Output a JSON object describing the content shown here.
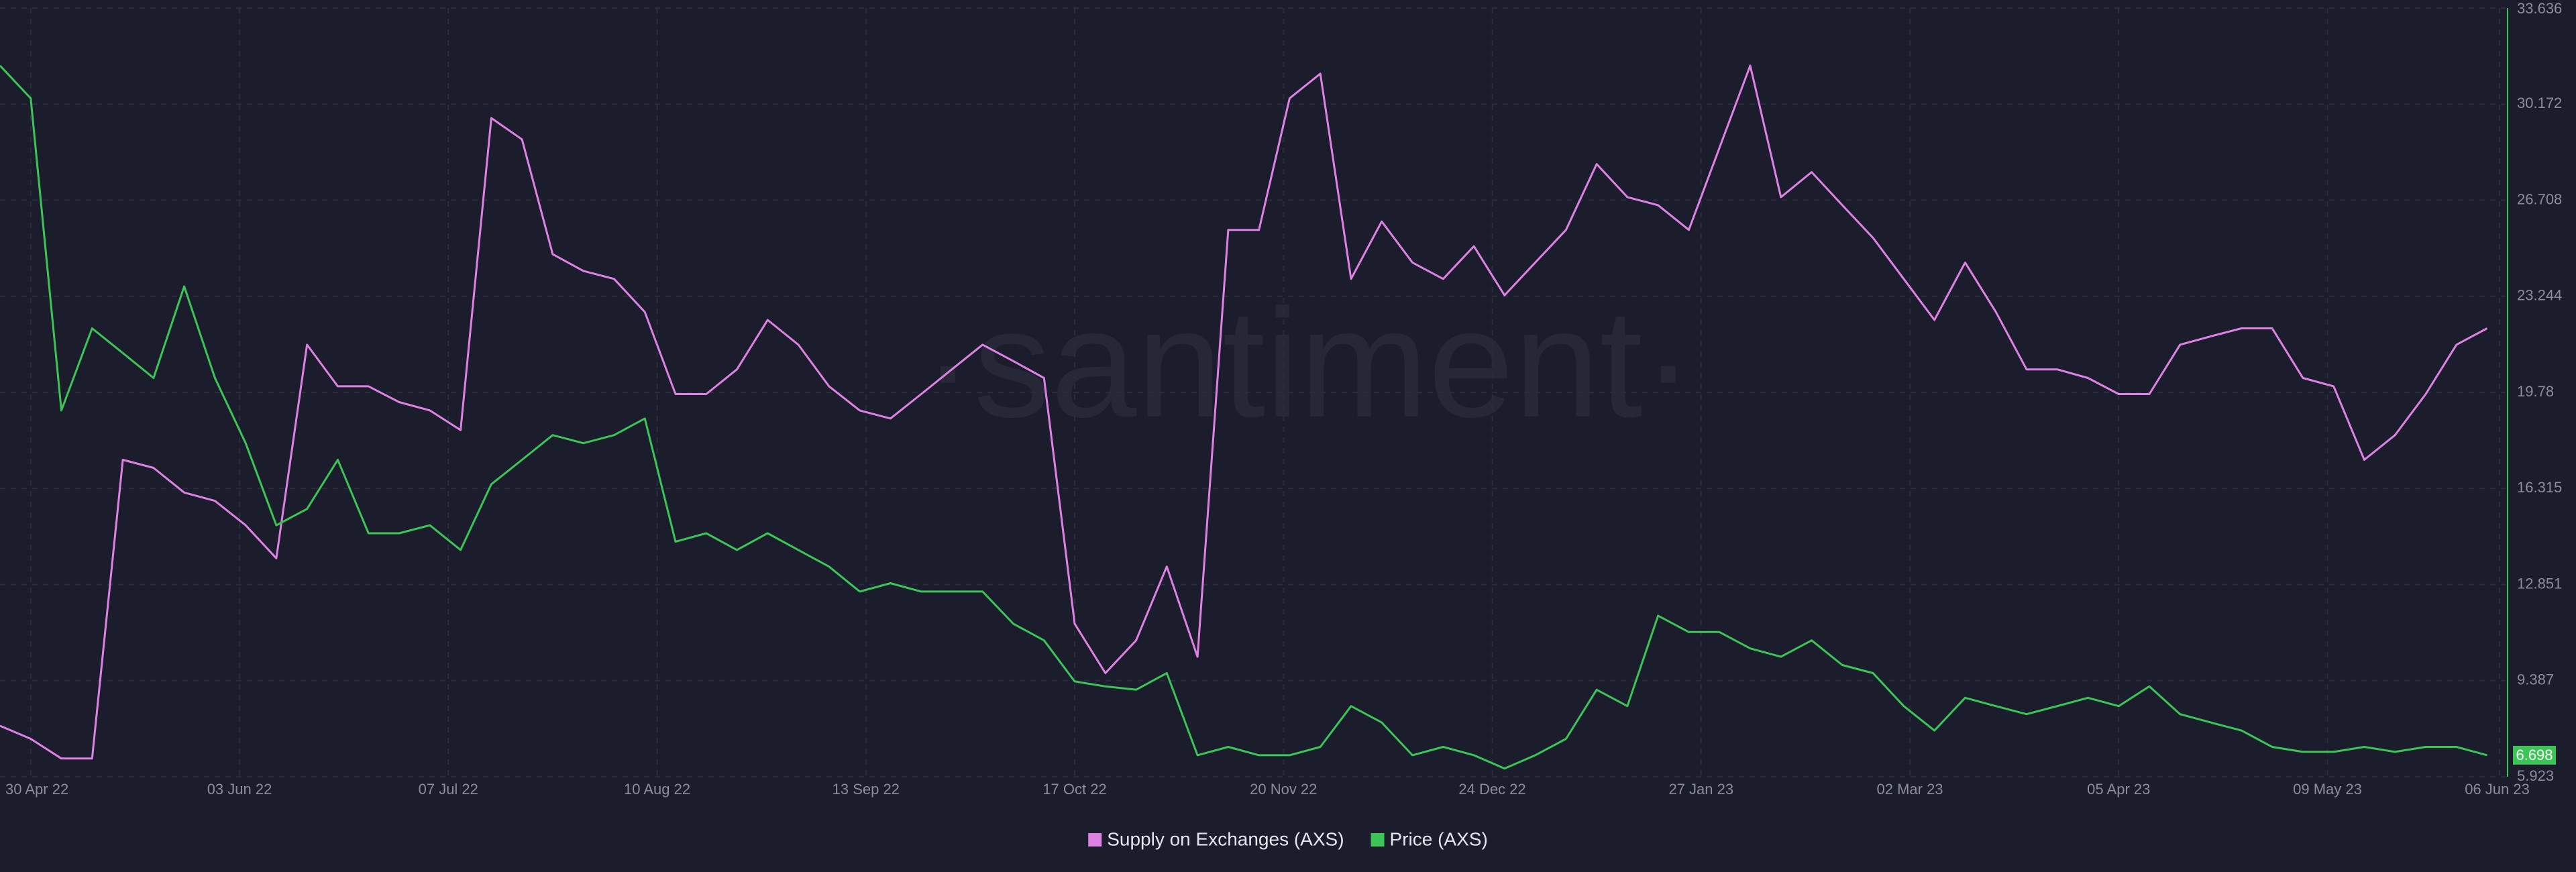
{
  "chart_data": {
    "type": "line",
    "watermark": "·santiment·",
    "x": [
      "2022-04-25",
      "2022-04-30",
      "2022-05-05",
      "2022-05-10",
      "2022-05-15",
      "2022-05-20",
      "2022-05-25",
      "2022-05-30",
      "2022-06-04",
      "2022-06-09",
      "2022-06-14",
      "2022-06-19",
      "2022-06-24",
      "2022-06-29",
      "2022-07-04",
      "2022-07-09",
      "2022-07-14",
      "2022-07-19",
      "2022-07-24",
      "2022-07-29",
      "2022-08-03",
      "2022-08-08",
      "2022-08-13",
      "2022-08-18",
      "2022-08-23",
      "2022-08-28",
      "2022-09-02",
      "2022-09-07",
      "2022-09-12",
      "2022-09-17",
      "2022-09-22",
      "2022-09-27",
      "2022-10-02",
      "2022-10-07",
      "2022-10-12",
      "2022-10-17",
      "2022-10-22",
      "2022-10-27",
      "2022-11-01",
      "2022-11-06",
      "2022-11-11",
      "2022-11-16",
      "2022-11-21",
      "2022-11-26",
      "2022-12-01",
      "2022-12-06",
      "2022-12-11",
      "2022-12-16",
      "2022-12-21",
      "2022-12-26",
      "2022-12-31",
      "2023-01-05",
      "2023-01-10",
      "2023-01-15",
      "2023-01-20",
      "2023-01-25",
      "2023-01-30",
      "2023-02-04",
      "2023-02-09",
      "2023-02-14",
      "2023-02-19",
      "2023-02-24",
      "2023-03-01",
      "2023-03-06",
      "2023-03-11",
      "2023-03-16",
      "2023-03-21",
      "2023-03-26",
      "2023-03-31",
      "2023-04-05",
      "2023-04-10",
      "2023-04-15",
      "2023-04-20",
      "2023-04-25",
      "2023-04-30",
      "2023-05-05",
      "2023-05-10",
      "2023-05-15",
      "2023-05-20",
      "2023-05-25",
      "2023-05-30",
      "2023-06-04"
    ],
    "series": [
      {
        "name": "Supply on Exchanges (AXS)",
        "color": "#dd82e3",
        "values": [
          7.76,
          7.29,
          6.58,
          6.58,
          17.35,
          17.06,
          16.17,
          15.87,
          14.99,
          13.8,
          21.5,
          20.0,
          20.0,
          19.43,
          19.13,
          18.42,
          29.67,
          28.9,
          24.76,
          24.16,
          23.87,
          22.68,
          19.72,
          19.72,
          20.61,
          22.39,
          21.5,
          20.0,
          19.13,
          18.84,
          19.72,
          20.61,
          21.5,
          20.91,
          20.3,
          11.44,
          9.66,
          10.84,
          13.5,
          10.25,
          25.64,
          25.64,
          30.38,
          31.27,
          23.87,
          25.94,
          24.46,
          23.87,
          25.05,
          23.28,
          24.46,
          25.64,
          28.01,
          26.82,
          26.53,
          25.64,
          28.6,
          31.56,
          26.82,
          27.72,
          26.53,
          25.35,
          23.87,
          22.39,
          24.46,
          22.68,
          20.61,
          20.61,
          20.3,
          19.72,
          19.72,
          21.5,
          21.8,
          22.09,
          22.09,
          20.3,
          20.0,
          17.35,
          18.24,
          19.72,
          21.5,
          22.09
        ]
      },
      {
        "name": "Price (AXS)",
        "color": "#3cc557",
        "current_value": 6.698,
        "values": [
          31.56,
          30.38,
          19.13,
          22.09,
          21.2,
          20.3,
          23.6,
          20.3,
          17.95,
          14.99,
          15.58,
          17.35,
          14.7,
          14.7,
          14.99,
          14.1,
          16.47,
          17.35,
          18.24,
          17.95,
          18.24,
          18.84,
          14.4,
          14.7,
          14.1,
          14.7,
          14.1,
          13.5,
          12.6,
          12.9,
          12.6,
          12.6,
          12.6,
          11.44,
          10.84,
          9.36,
          9.18,
          9.06,
          9.66,
          6.7,
          7.0,
          6.7,
          6.7,
          7.0,
          8.47,
          7.88,
          6.7,
          7.0,
          6.7,
          6.22,
          6.7,
          7.29,
          9.06,
          8.47,
          11.73,
          11.14,
          11.14,
          10.55,
          10.25,
          10.84,
          9.95,
          9.66,
          8.47,
          7.59,
          8.77,
          8.47,
          8.18,
          8.47,
          8.77,
          8.47,
          9.18,
          8.18,
          7.88,
          7.59,
          7.0,
          6.82,
          6.82,
          7.0,
          6.82,
          7.0,
          7.0,
          6.7
        ]
      }
    ],
    "xlim": [
      "2022-04-25",
      "2023-06-07"
    ],
    "xticks": [
      {
        "value": "2022-04-30",
        "label": "30 Apr 22"
      },
      {
        "value": "2022-06-03",
        "label": "03 Jun 22"
      },
      {
        "value": "2022-07-07",
        "label": "07 Jul 22"
      },
      {
        "value": "2022-08-10",
        "label": "10 Aug 22"
      },
      {
        "value": "2022-09-13",
        "label": "13 Sep 22"
      },
      {
        "value": "2022-10-17",
        "label": "17 Oct 22"
      },
      {
        "value": "2022-11-20",
        "label": "20 Nov 22"
      },
      {
        "value": "2022-12-24",
        "label": "24 Dec 22"
      },
      {
        "value": "2023-01-27",
        "label": "27 Jan 23"
      },
      {
        "value": "2023-03-02",
        "label": "02 Mar 23"
      },
      {
        "value": "2023-04-05",
        "label": "05 Apr 23"
      },
      {
        "value": "2023-05-09",
        "label": "09 May 23"
      },
      {
        "value": "2023-06-06",
        "label": "06 Jun 23"
      }
    ],
    "ylim": [
      5.923,
      33.636
    ],
    "yticks": [
      5.923,
      9.387,
      12.851,
      16.315,
      19.78,
      23.244,
      26.708,
      30.172,
      33.636
    ],
    "grid": true,
    "legend": "bottom"
  }
}
